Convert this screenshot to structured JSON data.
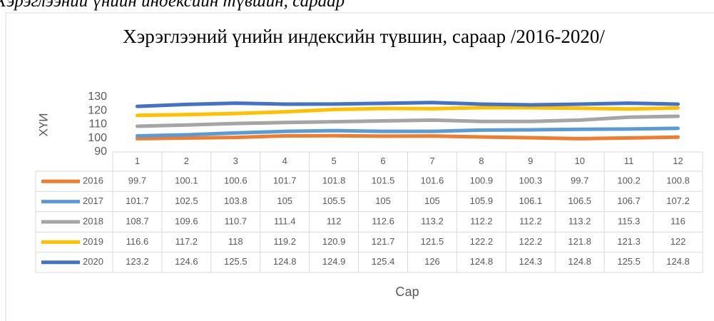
{
  "caption": "Хэрэглээний үнийн индексийн түвшин, сараар",
  "chart_data": {
    "type": "line",
    "title": "Хэрэглээний үнийн индексийн түвшин, сараар /2016-2020/",
    "x_label": "Сар",
    "y_label": "ХҮИ",
    "categories": [
      "1",
      "2",
      "3",
      "4",
      "5",
      "6",
      "7",
      "8",
      "9",
      "10",
      "11",
      "12"
    ],
    "ylim": [
      90,
      130
    ],
    "yticks": [
      90,
      100,
      110,
      120,
      130
    ],
    "series": [
      {
        "name": "2016",
        "color": "#ed7d31",
        "values": [
          99.7,
          100.1,
          100.6,
          101.7,
          101.8,
          101.5,
          101.6,
          100.9,
          100.3,
          99.7,
          100.2,
          100.8
        ]
      },
      {
        "name": "2017",
        "color": "#5b9bd5",
        "values": [
          101.7,
          102.5,
          103.8,
          105,
          105.5,
          105,
          105,
          105.9,
          106.1,
          106.5,
          106.7,
          107.2
        ]
      },
      {
        "name": "2018",
        "color": "#a5a5a5",
        "values": [
          108.7,
          109.6,
          110.7,
          111.4,
          112,
          112.6,
          113.2,
          112.2,
          112.2,
          113.2,
          115.3,
          116
        ]
      },
      {
        "name": "2019",
        "color": "#ffc000",
        "values": [
          116.6,
          117.2,
          118,
          119.2,
          120.9,
          121.7,
          121.5,
          122.2,
          122.2,
          121.8,
          121.3,
          122
        ]
      },
      {
        "name": "2020",
        "color": "#4472c4",
        "values": [
          123.2,
          124.6,
          125.5,
          124.8,
          124.9,
          125.4,
          126,
          124.8,
          124.3,
          124.8,
          125.5,
          124.8
        ]
      }
    ]
  }
}
